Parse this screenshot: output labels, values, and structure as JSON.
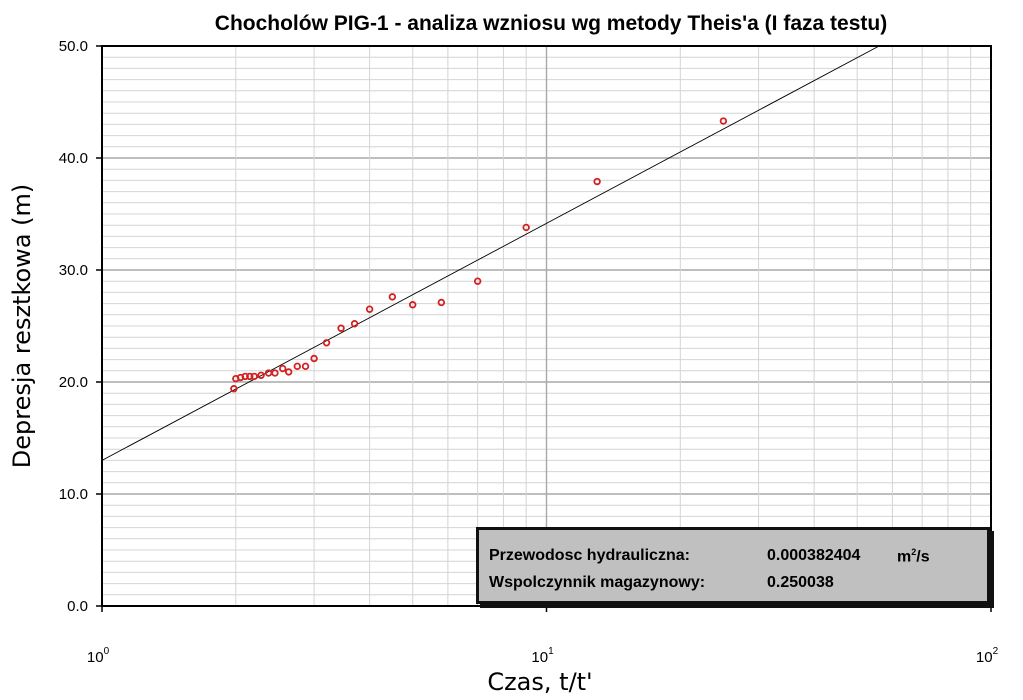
{
  "chart_data": {
    "type": "scatter",
    "title": "Chocholów PIG-1 - analiza wzniosu wg metody Theis'a (I faza testu)",
    "xlabel": "Czas, t/t'",
    "ylabel": "Depresja resztkowa (m)",
    "x_scale": "log",
    "xlim": [
      1,
      100
    ],
    "ylim": [
      0,
      50
    ],
    "x_ticks": [
      {
        "base": "10",
        "exp": "0",
        "value": 1
      },
      {
        "base": "10",
        "exp": "1",
        "value": 10
      },
      {
        "base": "10",
        "exp": "2",
        "value": 100
      }
    ],
    "y_ticks": [
      "0.0",
      "10.0",
      "20.0",
      "30.0",
      "40.0",
      "50.0"
    ],
    "grid": true,
    "series": [
      {
        "marker": "circle",
        "color": "#d42020",
        "points": [
          {
            "x": 1.98,
            "y": 19.4
          },
          {
            "x": 2.0,
            "y": 20.3
          },
          {
            "x": 2.05,
            "y": 20.4
          },
          {
            "x": 2.1,
            "y": 20.5
          },
          {
            "x": 2.15,
            "y": 20.5
          },
          {
            "x": 2.2,
            "y": 20.5
          },
          {
            "x": 2.28,
            "y": 20.6
          },
          {
            "x": 2.37,
            "y": 20.8
          },
          {
            "x": 2.45,
            "y": 20.8
          },
          {
            "x": 2.55,
            "y": 21.2
          },
          {
            "x": 2.63,
            "y": 20.9
          },
          {
            "x": 2.75,
            "y": 21.4
          },
          {
            "x": 2.87,
            "y": 21.4
          },
          {
            "x": 3.0,
            "y": 22.1
          },
          {
            "x": 3.2,
            "y": 23.5
          },
          {
            "x": 3.45,
            "y": 24.8
          },
          {
            "x": 3.7,
            "y": 25.2
          },
          {
            "x": 4.0,
            "y": 26.5
          },
          {
            "x": 4.5,
            "y": 27.6
          },
          {
            "x": 5.0,
            "y": 26.9
          },
          {
            "x": 5.8,
            "y": 27.1
          },
          {
            "x": 7.0,
            "y": 29.0
          },
          {
            "x": 9.0,
            "y": 33.8
          },
          {
            "x": 13.0,
            "y": 37.9
          },
          {
            "x": 25.0,
            "y": 43.3
          }
        ]
      }
    ],
    "fit_line": {
      "color": "#000000",
      "points": [
        {
          "x": 1,
          "y": 13.0
        },
        {
          "x": 56,
          "y": 50.0
        }
      ]
    }
  },
  "info_box": {
    "transmissivity_label": "Przewodosc hydrauliczna:",
    "transmissivity_value": "0.000382404",
    "transmissivity_unit_base": "m",
    "transmissivity_unit_exp": "2",
    "transmissivity_unit_tail": "/s",
    "storage_label": "Wspolczynnik magazynowy:",
    "storage_value": "0.250038"
  }
}
